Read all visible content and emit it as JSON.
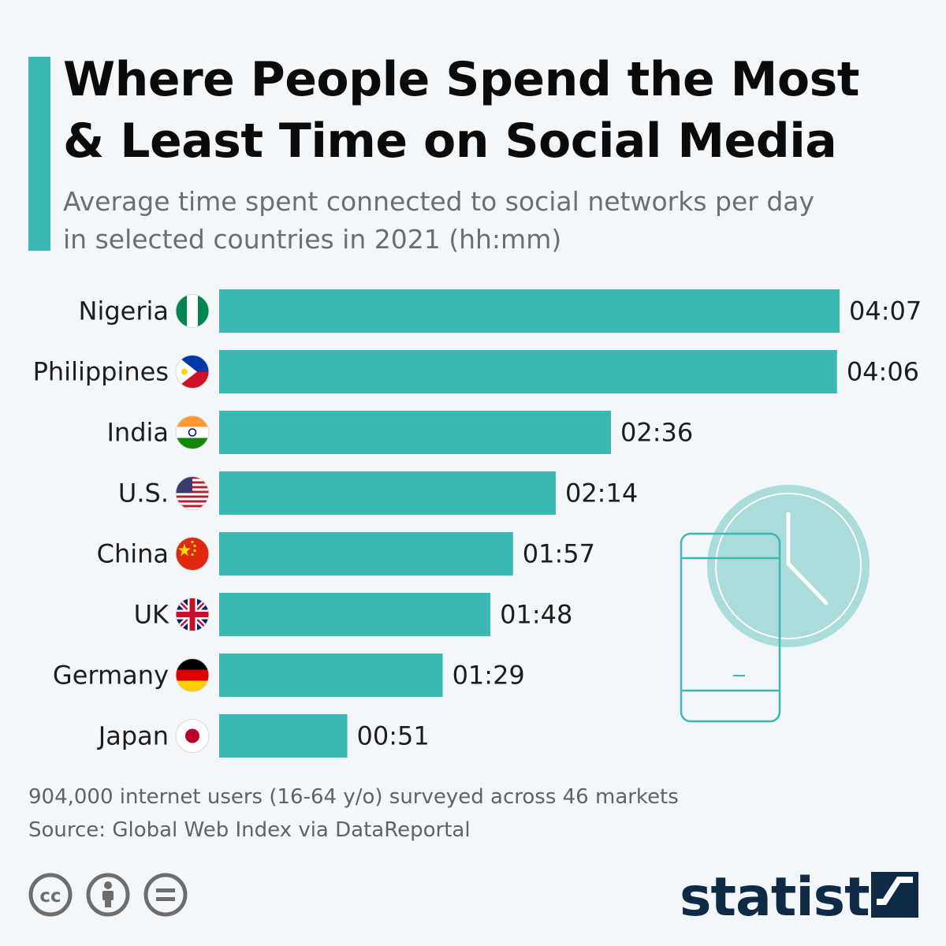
{
  "header": {
    "title_line1": "Where People Spend the Most",
    "title_line2": "& Least Time on Social Media",
    "subtitle_line1": "Average time spent connected to social networks per day",
    "subtitle_line2": "in selected countries in 2021 (hh:mm)"
  },
  "chart_data": {
    "type": "bar",
    "orientation": "horizontal",
    "categories": [
      "Nigeria",
      "Philippines",
      "India",
      "U.S.",
      "China",
      "UK",
      "Germany",
      "Japan"
    ],
    "values_minutes": [
      247,
      246,
      156,
      134,
      117,
      108,
      89,
      51
    ],
    "value_labels": [
      "04:07",
      "04:06",
      "02:36",
      "02:14",
      "01:57",
      "01:48",
      "01:29",
      "00:51"
    ],
    "flags": [
      "nigeria-flag-icon",
      "philippines-flag-icon",
      "india-flag-icon",
      "us-flag-icon",
      "china-flag-icon",
      "uk-flag-icon",
      "germany-flag-icon",
      "japan-flag-icon"
    ],
    "bar_color": "#3cb8b4",
    "grid": false
  },
  "footer": {
    "note": "904,000 internet users (16-64 y/o) surveyed across 46 markets",
    "source": "Source: Global Web Index via DataReportal",
    "brand": "statista",
    "license_icons": [
      "cc-icon",
      "attribution-icon",
      "no-derivatives-icon"
    ]
  },
  "colors": {
    "accent": "#3cb8b4",
    "background": "#f4f7fa",
    "brand": "#0e2a47"
  }
}
